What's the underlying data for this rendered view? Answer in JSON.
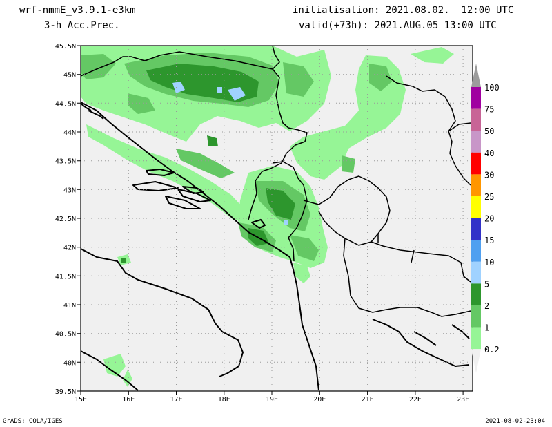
{
  "header": {
    "model": "wrf-nmmE_v3.9.1-e3km",
    "product": "3-h Acc.Prec.",
    "initialisation": "initialisation: 2021.08.02.  12:00 UTC",
    "valid": "valid(+73h): 2021.AUG.05 13:00 UTC"
  },
  "map": {
    "lon_labels": [
      "15E",
      "16E",
      "17E",
      "18E",
      "19E",
      "20E",
      "21E",
      "22E",
      "23E"
    ],
    "lat_labels": [
      "45.5N",
      "45N",
      "44.5N",
      "44N",
      "43.5N",
      "43N",
      "42.5N",
      "42N",
      "41.5N",
      "41N",
      "40.5N",
      "40N",
      "39.5N"
    ],
    "lon_range": [
      15,
      23.2
    ],
    "lat_range": [
      39.5,
      45.5
    ],
    "grid": "dotted"
  },
  "colorbar": {
    "labels": [
      "100",
      "75",
      "50",
      "40",
      "30",
      "25",
      "20",
      "15",
      "10",
      "5",
      "2",
      "1",
      "0.2"
    ],
    "colors": [
      "#9c9c9c",
      "#a000a0",
      "#c86496",
      "#c896c8",
      "#ff0000",
      "#ff9600",
      "#ffff00",
      "#3232c8",
      "#50a0f0",
      "#a0d2ff",
      "#2d962d",
      "#64c864",
      "#96f596"
    ]
  },
  "footer": {
    "left": "GrADS: COLA/IGES",
    "right": "2021-08-02-23:04"
  },
  "colors": {
    "sea": "#f0f0f0",
    "light_green": "#96f596",
    "mid_green": "#64c864",
    "dark_green": "#2d962d",
    "light_blue": "#a0d2ff"
  }
}
